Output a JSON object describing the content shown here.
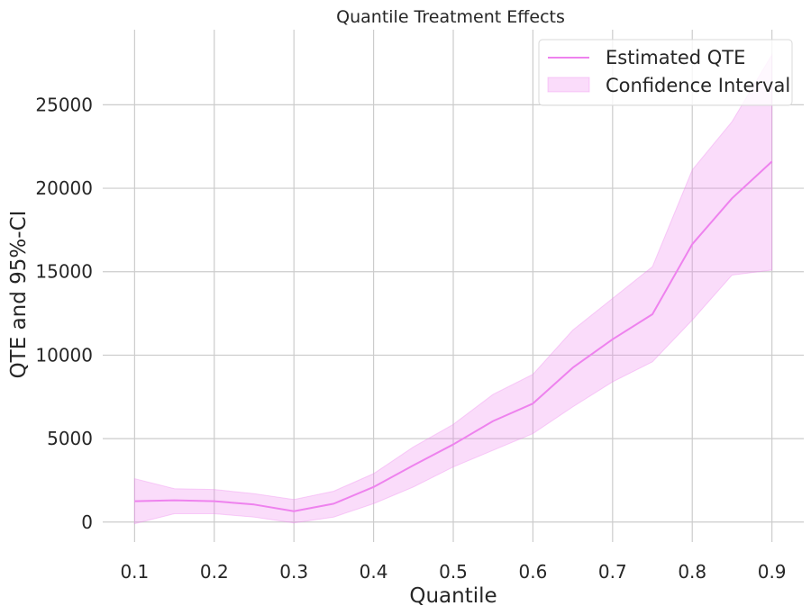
{
  "chart_data": {
    "type": "line",
    "title": "Quantile Treatment Effects",
    "xlabel": "Quantile",
    "ylabel": "QTE and 95%-CI",
    "xlim": [
      0.06,
      0.94
    ],
    "ylim": [
      -1200,
      29500
    ],
    "xticks": [
      0.1,
      0.2,
      0.3,
      0.4,
      0.5,
      0.6,
      0.7,
      0.8,
      0.9
    ],
    "xtick_labels": [
      "0.1",
      "0.2",
      "0.3",
      "0.4",
      "0.5",
      "0.6",
      "0.7",
      "0.8",
      "0.9"
    ],
    "yticks": [
      0,
      5000,
      10000,
      15000,
      20000,
      25000
    ],
    "ytick_labels": [
      "0",
      "5000",
      "10000",
      "15000",
      "20000",
      "25000"
    ],
    "grid": true,
    "legend_position": "top-right",
    "colors": {
      "line": "#ee82ee",
      "band": "#ee82ee"
    },
    "series": [
      {
        "name": "Estimated QTE",
        "kind": "line",
        "x": [
          0.1,
          0.15,
          0.2,
          0.25,
          0.3,
          0.35,
          0.4,
          0.45,
          0.5,
          0.55,
          0.6,
          0.65,
          0.7,
          0.75,
          0.8,
          0.85,
          0.9
        ],
        "y": [
          1250,
          1300,
          1250,
          1050,
          650,
          1100,
          2100,
          3400,
          4650,
          6050,
          7100,
          9250,
          10950,
          12450,
          16650,
          19400,
          21600
        ]
      },
      {
        "name": "Confidence Interval",
        "kind": "band",
        "x": [
          0.1,
          0.15,
          0.2,
          0.25,
          0.3,
          0.35,
          0.4,
          0.45,
          0.5,
          0.55,
          0.6,
          0.65,
          0.7,
          0.75,
          0.8,
          0.85,
          0.9
        ],
        "lower": [
          -100,
          500,
          500,
          300,
          -50,
          300,
          1100,
          2100,
          3300,
          4300,
          5300,
          6900,
          8400,
          9600,
          12100,
          14800,
          15100
        ],
        "upper": [
          2600,
          2000,
          1950,
          1700,
          1350,
          1850,
          2900,
          4500,
          5850,
          7650,
          8850,
          11500,
          13400,
          15300,
          21100,
          24000,
          28000
        ]
      }
    ]
  }
}
